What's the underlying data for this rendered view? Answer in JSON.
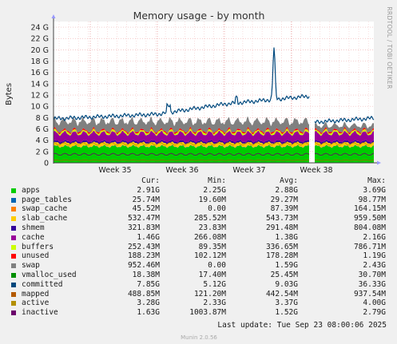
{
  "chart_data": {
    "type": "area",
    "title": "Memory usage - by month",
    "ylabel": "Bytes",
    "ylim": [
      0,
      25
    ],
    "y_unit": "G",
    "yticks": [
      "0",
      "2 G",
      "4 G",
      "6 G",
      "8 G",
      "10 G",
      "12 G",
      "14 G",
      "16 G",
      "18 G",
      "20 G",
      "22 G",
      "24 G"
    ],
    "xticks": [
      "Week 35",
      "Week 36",
      "Week 37",
      "Week 38"
    ],
    "grid": true,
    "side_text": "RRDTOOL / TOBI OETIKER",
    "footer": "Munin 2.0.56",
    "last_update": "Last update: Tue Sep 23 08:00:06 2025",
    "legend_headers": [
      "Cur:",
      "Min:",
      "Avg:",
      "Max:"
    ],
    "stack_approx_gb": [
      {
        "name": "apps",
        "value": 2.9
      },
      {
        "name": "page_tables",
        "value": 0.03
      },
      {
        "name": "swap_cache",
        "value": 0.05
      },
      {
        "name": "slab_cache",
        "value": 0.55
      },
      {
        "name": "shmem",
        "value": 0.3
      },
      {
        "name": "cache",
        "value": 1.4
      },
      {
        "name": "buffers",
        "value": 0.3
      },
      {
        "name": "unused",
        "value": 0.2
      },
      {
        "name": "swap",
        "value": 1.6
      }
    ],
    "committed_approx_gb": {
      "start": 7.8,
      "week36": 8.6,
      "week37": 10.4,
      "peak": 21.0,
      "before_gap": 11.8,
      "after_gap": 7.2,
      "end": 7.9
    },
    "series": [
      {
        "name": "apps",
        "color": "#00cc00",
        "cur": "2.91G",
        "min": "2.25G",
        "avg": "2.88G",
        "max": "3.69G"
      },
      {
        "name": "page_tables",
        "color": "#0066b3",
        "cur": "25.74M",
        "min": "19.60M",
        "avg": "29.27M",
        "max": "98.77M"
      },
      {
        "name": "swap_cache",
        "color": "#ff8000",
        "cur": "45.52M",
        "min": "0.00",
        "avg": "87.39M",
        "max": "164.15M"
      },
      {
        "name": "slab_cache",
        "color": "#ffcc00",
        "cur": "532.47M",
        "min": "285.52M",
        "avg": "543.73M",
        "max": "959.50M"
      },
      {
        "name": "shmem",
        "color": "#330099",
        "cur": "321.83M",
        "min": "23.83M",
        "avg": "291.48M",
        "max": "804.08M"
      },
      {
        "name": "cache",
        "color": "#990099",
        "cur": "1.46G",
        "min": "266.08M",
        "avg": "1.38G",
        "max": "2.16G"
      },
      {
        "name": "buffers",
        "color": "#ccff00",
        "cur": "252.43M",
        "min": "89.35M",
        "avg": "336.65M",
        "max": "786.71M"
      },
      {
        "name": "unused",
        "color": "#ff0000",
        "cur": "188.23M",
        "min": "102.12M",
        "avg": "178.28M",
        "max": "1.19G"
      },
      {
        "name": "swap",
        "color": "#808080",
        "cur": "952.46M",
        "min": "0.00",
        "avg": "1.59G",
        "max": "2.43G"
      },
      {
        "name": "vmalloc_used",
        "color": "#008f00",
        "cur": "18.38M",
        "min": "17.40M",
        "avg": "25.45M",
        "max": "30.70M"
      },
      {
        "name": "committed",
        "color": "#00487d",
        "cur": "7.85G",
        "min": "5.12G",
        "avg": "9.03G",
        "max": "36.33G"
      },
      {
        "name": "mapped",
        "color": "#b35a00",
        "cur": "488.85M",
        "min": "121.20M",
        "avg": "442.54M",
        "max": "937.54M"
      },
      {
        "name": "active",
        "color": "#b38f00",
        "cur": "3.28G",
        "min": "2.33G",
        "avg": "3.37G",
        "max": "4.00G"
      },
      {
        "name": "inactive",
        "color": "#6b006b",
        "cur": "1.63G",
        "min": "1003.87M",
        "avg": "1.52G",
        "max": "2.79G"
      }
    ]
  }
}
